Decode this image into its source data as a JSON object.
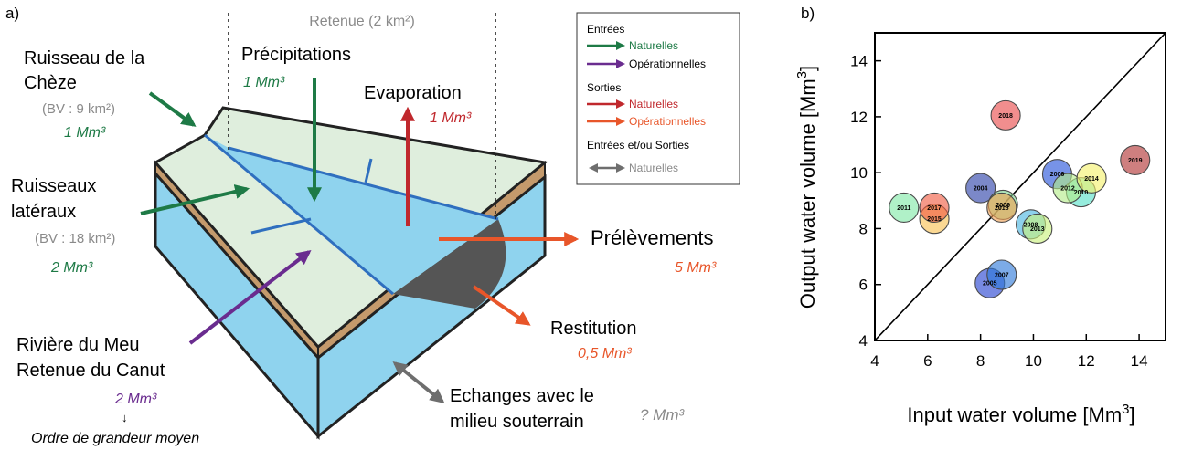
{
  "panel_a": {
    "label": "a)",
    "retenue": "Retenue (2 km²)",
    "inputs": {
      "ruisseau_chaeze": {
        "name_line1": "Ruisseau de la",
        "name_line2": "Chèze",
        "bv": "(BV : 9 km²)",
        "volume": "1 Mm³"
      },
      "precipitations": {
        "name": "Précipitations",
        "volume": "1 Mm³"
      },
      "ruisseaux_lateraux": {
        "name_line1": "Ruisseaux",
        "name_line2": "latéraux",
        "bv": "(BV : 18 km²)",
        "volume": "2 Mm³"
      },
      "meu": {
        "name_line1": "Rivière du Meu",
        "name_line2": "Retenue du Canut",
        "volume": "2 Mm³"
      }
    },
    "outputs": {
      "evaporation": {
        "name": "Evaporation",
        "volume": "1 Mm³"
      },
      "prelevements": {
        "name": "Prélèvements",
        "volume": "5 Mm³"
      },
      "restitution": {
        "name": "Restitution",
        "volume": "0,5 Mm³"
      }
    },
    "exchanges": {
      "name_line1": "Echanges avec le",
      "name_line2": "milieu souterrain",
      "volume": "? Mm³"
    },
    "footnote_arrow": "↓",
    "footnote": "Ordre de grandeur moyen",
    "legend": {
      "entrees": "Entrées",
      "entrees_nat": "Naturelles",
      "entrees_op": "Opérationnelles",
      "sorties": "Sorties",
      "sorties_nat": "Naturelles",
      "sorties_op": "Opérationnelles",
      "both": "Entrées et/ou Sorties",
      "both_nat": "Naturelles"
    },
    "colors": {
      "natural_in": "#1e7a46",
      "operational_in": "#6a2c8f",
      "natural_out": "#c0282d",
      "operational_out": "#e8562a",
      "exchange": "#6e6e6e",
      "water": "#8fd3ee",
      "land": "#dfeedd",
      "soil": "#c49a6c",
      "stream": "#2f6fbf"
    }
  },
  "chart_data": {
    "panel_label": "b)",
    "type": "scatter",
    "xlabel": "Input water volume [Mm",
    "ylabel": "Output water volume [Mm",
    "label_exponent": "3",
    "xlim": [
      4,
      15
    ],
    "ylim": [
      4,
      15
    ],
    "x_ticks": [
      4,
      6,
      8,
      10,
      12,
      14
    ],
    "y_ticks": [
      4,
      6,
      8,
      10,
      12,
      14
    ],
    "reference_line": "1:1",
    "points": [
      {
        "year": "2004",
        "x": 8.0,
        "y": 9.45,
        "color": "#2a3fa8"
      },
      {
        "year": "2005",
        "x": 8.35,
        "y": 6.05,
        "color": "#2340d0"
      },
      {
        "year": "2006",
        "x": 10.9,
        "y": 9.95,
        "color": "#2350d8"
      },
      {
        "year": "2007",
        "x": 8.8,
        "y": 6.35,
        "color": "#2b78d8"
      },
      {
        "year": "2008",
        "x": 9.9,
        "y": 8.15,
        "color": "#48b4e0"
      },
      {
        "year": "2009",
        "x": 8.85,
        "y": 8.85,
        "color": "#7ed690"
      },
      {
        "year": "2010",
        "x": 11.8,
        "y": 9.3,
        "color": "#55e0c8"
      },
      {
        "year": "2011",
        "x": 5.1,
        "y": 8.75,
        "color": "#7fe8a6"
      },
      {
        "year": "2012",
        "x": 11.3,
        "y": 9.45,
        "color": "#b3ec88"
      },
      {
        "year": "2013",
        "x": 10.15,
        "y": 8.0,
        "color": "#c8f07a"
      },
      {
        "year": "2014",
        "x": 12.2,
        "y": 9.8,
        "color": "#f4f06a"
      },
      {
        "year": "2015",
        "x": 6.25,
        "y": 8.35,
        "color": "#f8c050"
      },
      {
        "year": "2016",
        "x": 8.8,
        "y": 8.75,
        "color": "#f0a050"
      },
      {
        "year": "2017",
        "x": 6.25,
        "y": 8.75,
        "color": "#f05a40"
      },
      {
        "year": "2018",
        "x": 8.95,
        "y": 12.05,
        "color": "#e84848"
      },
      {
        "year": "2019",
        "x": 13.85,
        "y": 10.45,
        "color": "#b03030"
      }
    ]
  }
}
